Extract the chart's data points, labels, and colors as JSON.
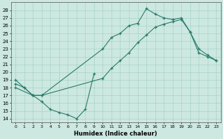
{
  "xlabel": "Humidex (Indice chaleur)",
  "xlim": [
    -0.5,
    23.5
  ],
  "ylim": [
    13.5,
    29.0
  ],
  "xticks": [
    0,
    1,
    2,
    3,
    4,
    5,
    6,
    7,
    8,
    9,
    10,
    11,
    12,
    13,
    14,
    15,
    16,
    17,
    18,
    19,
    20,
    21,
    22,
    23
  ],
  "yticks": [
    14,
    15,
    16,
    17,
    18,
    19,
    20,
    21,
    22,
    23,
    24,
    25,
    26,
    27,
    28
  ],
  "color": "#2a7a6a",
  "bg_color": "#cce8e0",
  "grid_color": "#9ecec5",
  "line1_x": [
    0,
    1,
    2,
    3,
    4,
    5,
    6,
    7,
    8,
    9
  ],
  "line1_y": [
    19.0,
    18.0,
    17.0,
    16.2,
    15.2,
    14.8,
    14.5,
    14.0,
    15.2,
    19.8
  ],
  "line2_x": [
    0,
    2,
    3,
    10,
    11,
    12,
    13,
    14,
    15,
    16,
    17,
    18,
    19,
    20,
    21,
    22,
    23
  ],
  "line2_y": [
    18.0,
    17.0,
    17.0,
    23.0,
    24.5,
    25.0,
    26.0,
    26.3,
    28.2,
    27.5,
    27.0,
    26.8,
    27.0,
    25.2,
    22.5,
    22.0,
    21.5
  ],
  "line3_x": [
    0,
    1,
    2,
    3,
    10,
    11,
    12,
    13,
    14,
    15,
    16,
    17,
    18,
    19,
    20,
    21,
    22,
    23
  ],
  "line3_y": [
    18.5,
    18.0,
    17.0,
    17.0,
    19.2,
    20.5,
    21.5,
    22.5,
    23.8,
    24.8,
    25.8,
    26.2,
    26.5,
    26.8,
    25.2,
    23.0,
    22.2,
    21.5
  ]
}
